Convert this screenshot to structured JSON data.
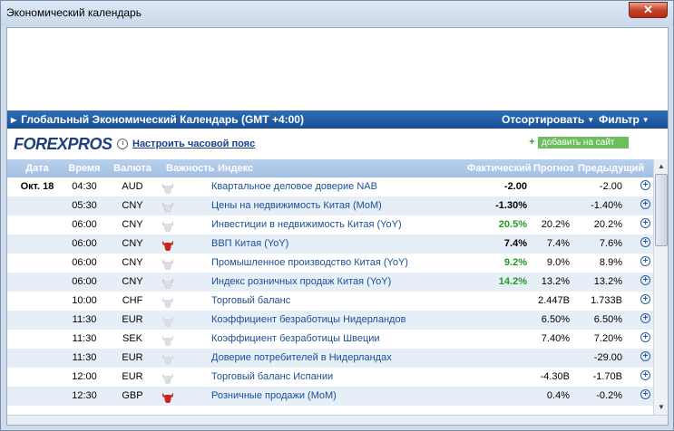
{
  "window": {
    "title": "Экономический календарь",
    "close_label": "✕"
  },
  "calendar": {
    "title": "Глобальный Экономический Календарь (GMT +4:00)",
    "sort_label": "Отсортировать",
    "filter_label": "Фильтр",
    "logo_text": "FOREXPROS",
    "timezone_link": "Настроить часовой пояс",
    "add_site": "добавить на сайт"
  },
  "columns": {
    "date": "Дата",
    "time": "Время",
    "currency": "Валюта",
    "importance": "Важность",
    "index": "Индекс",
    "actual": "Фактический",
    "forecast": "Прогноз",
    "previous": "Предыдущий"
  },
  "colors": {
    "accent": "#1a4f95",
    "bull_active": "#c8261b",
    "positive": "#1f9a1f"
  },
  "rows": [
    {
      "date": "Окт. 18",
      "time": "04:30",
      "currency": "AUD",
      "importance": 2,
      "name": "Квартальное деловое доверие NAB",
      "actual": "-2.00",
      "actual_color": "black",
      "forecast": "",
      "previous": "-2.00"
    },
    {
      "date": "",
      "time": "05:30",
      "currency": "CNY",
      "importance": 2,
      "name": "Цены на недвижимость Китая (MoM)",
      "actual": "-1.30%",
      "actual_color": "black",
      "forecast": "",
      "previous": "-1.40%"
    },
    {
      "date": "",
      "time": "06:00",
      "currency": "CNY",
      "importance": 2,
      "name": "Инвестиции в недвижимость Китая (YoY)",
      "actual": "20.5%",
      "actual_color": "green",
      "forecast": "20.2%",
      "previous": "20.2%"
    },
    {
      "date": "",
      "time": "06:00",
      "currency": "CNY",
      "importance": 3,
      "name": "ВВП Китая (YoY)",
      "actual": "7.4%",
      "actual_color": "black",
      "forecast": "7.4%",
      "previous": "7.6%"
    },
    {
      "date": "",
      "time": "06:00",
      "currency": "CNY",
      "importance": 2,
      "name": "Промышленное производство Китая (YoY)",
      "actual": "9.2%",
      "actual_color": "green",
      "forecast": "9.0%",
      "previous": "8.9%"
    },
    {
      "date": "",
      "time": "06:00",
      "currency": "CNY",
      "importance": 2,
      "name": "Индекс розничных продаж Китая (YoY)",
      "actual": "14.2%",
      "actual_color": "green",
      "forecast": "13.2%",
      "previous": "13.2%"
    },
    {
      "date": "",
      "time": "10:00",
      "currency": "CHF",
      "importance": 1,
      "name": "Торговый баланс",
      "actual": "",
      "actual_color": "black",
      "forecast": "2.447B",
      "previous": "1.733B"
    },
    {
      "date": "",
      "time": "11:30",
      "currency": "EUR",
      "importance": 1,
      "name": "Коэффициент безработицы Нидерландов",
      "actual": "",
      "actual_color": "black",
      "forecast": "6.50%",
      "previous": "6.50%"
    },
    {
      "date": "",
      "time": "11:30",
      "currency": "SEK",
      "importance": 1,
      "name": "Коэффициент безработицы Швеции",
      "actual": "",
      "actual_color": "black",
      "forecast": "7.40%",
      "previous": "7.20%"
    },
    {
      "date": "",
      "time": "11:30",
      "currency": "EUR",
      "importance": 1,
      "name": "Доверие потребителей в Нидерландах",
      "actual": "",
      "actual_color": "black",
      "forecast": "",
      "previous": "-29.00"
    },
    {
      "date": "",
      "time": "12:00",
      "currency": "EUR",
      "importance": 1,
      "name": "Торговый баланс Испании",
      "actual": "",
      "actual_color": "black",
      "forecast": "-4.30B",
      "previous": "-1.70B"
    },
    {
      "date": "",
      "time": "12:30",
      "currency": "GBP",
      "importance": 3,
      "name": "Розничные продажи (MoM)",
      "actual": "",
      "actual_color": "black",
      "forecast": "0.4%",
      "previous": "-0.2%"
    }
  ]
}
